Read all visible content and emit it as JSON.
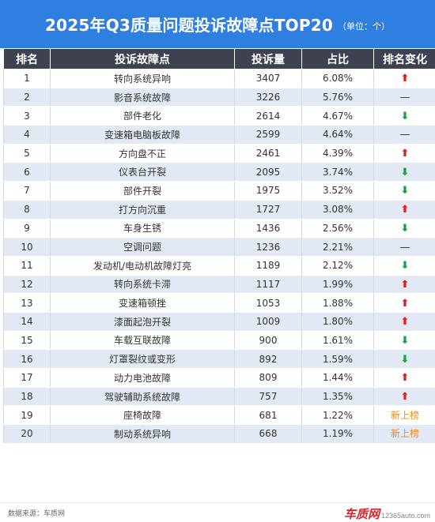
{
  "header": {
    "title": "2025年Q3质量问题投诉故障点TOP20",
    "unit": "（单位：个）"
  },
  "table": {
    "columns": [
      "排名",
      "投诉故障点",
      "投诉量",
      "占比",
      "排名变化"
    ],
    "rows": [
      {
        "rank": "1",
        "name": "转向系统异响",
        "count": "3407",
        "share": "6.08%",
        "change": "up"
      },
      {
        "rank": "2",
        "name": "影音系统故障",
        "count": "3226",
        "share": "5.76%",
        "change": "same"
      },
      {
        "rank": "3",
        "name": "部件老化",
        "count": "2614",
        "share": "4.67%",
        "change": "down"
      },
      {
        "rank": "4",
        "name": "变速箱电脑板故障",
        "count": "2599",
        "share": "4.64%",
        "change": "same"
      },
      {
        "rank": "5",
        "name": "方向盘不正",
        "count": "2461",
        "share": "4.39%",
        "change": "up"
      },
      {
        "rank": "6",
        "name": "仪表台开裂",
        "count": "2095",
        "share": "3.74%",
        "change": "down"
      },
      {
        "rank": "7",
        "name": "部件开裂",
        "count": "1975",
        "share": "3.52%",
        "change": "down"
      },
      {
        "rank": "8",
        "name": "打方向沉重",
        "count": "1727",
        "share": "3.08%",
        "change": "up"
      },
      {
        "rank": "9",
        "name": "车身生锈",
        "count": "1436",
        "share": "2.56%",
        "change": "down"
      },
      {
        "rank": "10",
        "name": "空调问题",
        "count": "1236",
        "share": "2.21%",
        "change": "same"
      },
      {
        "rank": "11",
        "name": "发动机/电动机故障灯亮",
        "count": "1189",
        "share": "2.12%",
        "change": "down"
      },
      {
        "rank": "12",
        "name": "转向系统卡滞",
        "count": "1117",
        "share": "1.99%",
        "change": "up"
      },
      {
        "rank": "13",
        "name": "变速箱顿挫",
        "count": "1053",
        "share": "1.88%",
        "change": "up"
      },
      {
        "rank": "14",
        "name": "漆面起泡开裂",
        "count": "1009",
        "share": "1.80%",
        "change": "up"
      },
      {
        "rank": "15",
        "name": "车载互联故障",
        "count": "900",
        "share": "1.61%",
        "change": "down"
      },
      {
        "rank": "16",
        "name": "灯罩裂纹或变形",
        "count": "892",
        "share": "1.59%",
        "change": "down"
      },
      {
        "rank": "17",
        "name": "动力电池故障",
        "count": "809",
        "share": "1.44%",
        "change": "up"
      },
      {
        "rank": "18",
        "name": "驾驶辅助系统故障",
        "count": "757",
        "share": "1.35%",
        "change": "up"
      },
      {
        "rank": "19",
        "name": "座椅故障",
        "count": "681",
        "share": "1.22%",
        "change": "new"
      },
      {
        "rank": "20",
        "name": "制动系统异响",
        "count": "668",
        "share": "1.19%",
        "change": "new"
      }
    ],
    "change_symbols": {
      "up": "⬆",
      "down": "⬇",
      "same": "—",
      "new": "新上榜"
    }
  },
  "footer": {
    "source": "数据来源：车质网",
    "brand": "车质网",
    "site": "12365auto.com"
  },
  "colors": {
    "banner": "#2f7fe0",
    "header_row": "#3e4150",
    "stripe": "#e3e9f4",
    "up": "#e0201b",
    "down": "#1aa33c",
    "new": "#f28b10"
  }
}
